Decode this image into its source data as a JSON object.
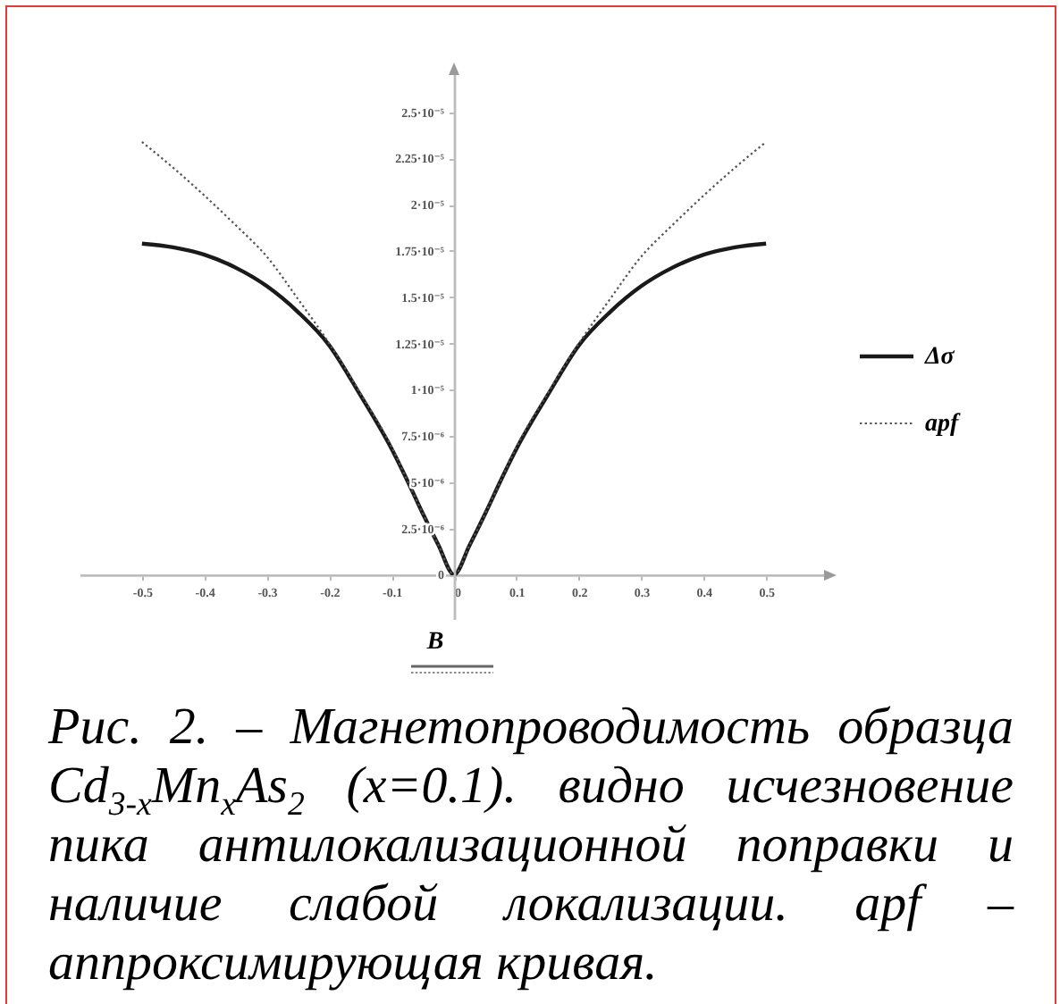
{
  "chart_data": {
    "type": "line",
    "xlabel": "B",
    "annotations": [
      "Рис. 2. – Магнетопроводимость образца Cd$_{3-x}$Mn$_{x}$As$_{2}$ (x=0.1). видно исчезновение пика антилокализационной поправки и наличие слабой локализации. apf – аппроксимирующая кривая."
    ],
    "x": [
      -0.5,
      -0.45,
      -0.4,
      -0.35,
      -0.3,
      -0.25,
      -0.2,
      -0.15,
      -0.1,
      -0.075,
      -0.05,
      -0.025,
      0,
      0.025,
      0.05,
      0.075,
      0.1,
      0.15,
      0.2,
      0.25,
      0.3,
      0.35,
      0.4,
      0.45,
      0.5
    ],
    "series": [
      {
        "name": "Δσ",
        "color": "#1a1a1a",
        "line_style": "solid",
        "values": [
          1.79e-05,
          1.77e-05,
          1.73e-05,
          1.66e-05,
          1.56e-05,
          1.42e-05,
          1.24e-05,
          9.7e-06,
          6.8e-06,
          5.1e-06,
          3.3e-06,
          1.6e-06,
          0,
          1.6e-06,
          3.3e-06,
          5.1e-06,
          6.8e-06,
          9.7e-06,
          1.24e-05,
          1.42e-05,
          1.56e-05,
          1.66e-05,
          1.73e-05,
          1.77e-05,
          1.79e-05
        ]
      },
      {
        "name": "apf",
        "color": "#555555",
        "line_style": "dotted",
        "values": [
          2.34e-05,
          2.2e-05,
          2.05e-05,
          1.89e-05,
          1.72e-05,
          1.49e-05,
          1.25e-05,
          9.8e-06,
          6.9e-06,
          5.1e-06,
          3.3e-06,
          1.6e-06,
          0,
          1.6e-06,
          3.3e-06,
          5.1e-06,
          6.9e-06,
          9.8e-06,
          1.25e-05,
          1.49e-05,
          1.72e-05,
          1.89e-05,
          2.05e-05,
          2.2e-05,
          2.34e-05
        ]
      }
    ],
    "xlim": [
      -0.6,
      0.6
    ],
    "xticks": [
      -0.5,
      -0.4,
      -0.3,
      -0.2,
      -0.1,
      0,
      0.1,
      0.2,
      0.3,
      0.4,
      0.5
    ],
    "ylim": [
      -2.4e-06,
      2.74e-05
    ],
    "yticks": [
      0,
      {
        "value": 2.5e-06,
        "label": "2.5·10⁻⁶"
      },
      {
        "value": 5e-06,
        "label": "5·10⁻⁶"
      },
      {
        "value": 7.5e-06,
        "label": "7.5·10⁻⁶"
      },
      {
        "value": 1e-05,
        "label": "1·10⁻⁵"
      },
      {
        "value": 1.25e-05,
        "label": "1.25·10⁻⁵"
      },
      {
        "value": 1.5e-05,
        "label": "1.5·10⁻⁵"
      },
      {
        "value": 1.75e-05,
        "label": "1.75·10⁻⁵"
      },
      {
        "value": 2e-05,
        "label": "2·10⁻⁵"
      },
      {
        "value": 2.25e-05,
        "label": "2.25·10⁻⁵"
      },
      {
        "value": 2.5e-05,
        "label": "2.5·10⁻⁵"
      }
    ],
    "legend": "right"
  }
}
